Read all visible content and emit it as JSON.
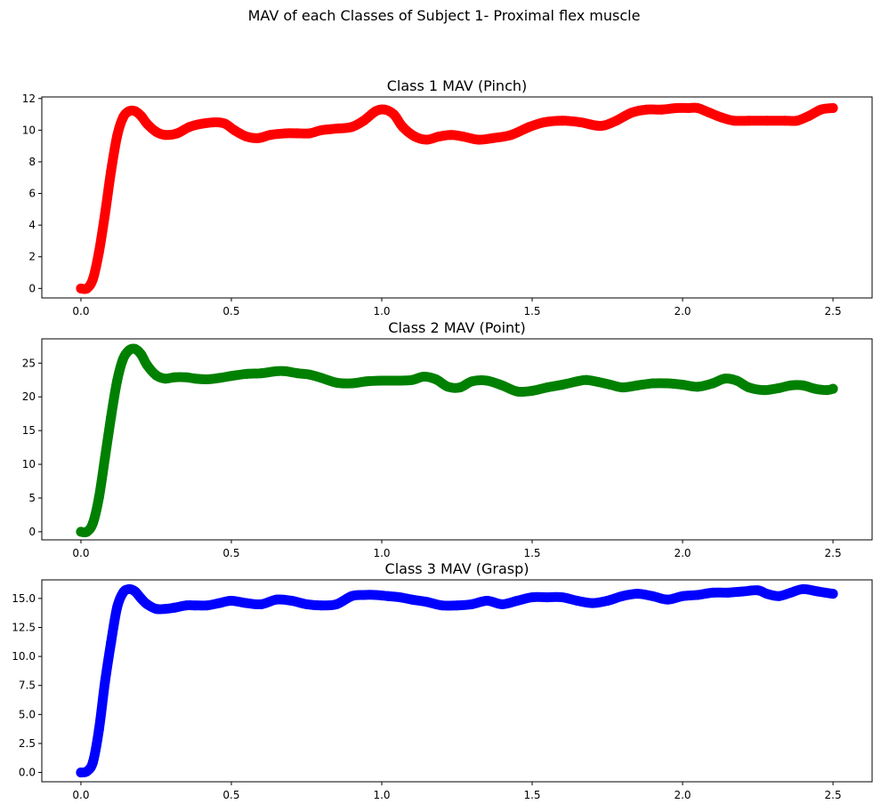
{
  "figure": {
    "suptitle": "MAV of each Classes of Subject 1- Proximal flex muscle"
  },
  "chart_data": [
    {
      "type": "scatter",
      "title": "Class 1 MAV (Pinch)",
      "xlabel": "",
      "ylabel": "",
      "xlim": [
        -0.13,
        2.63
      ],
      "ylim": [
        -0.6,
        12.1
      ],
      "xticks": [
        0.0,
        0.5,
        1.0,
        1.5,
        2.0,
        2.5
      ],
      "xtick_labels": [
        "0.0",
        "0.5",
        "1.0",
        "1.5",
        "2.0",
        "2.5"
      ],
      "yticks": [
        0,
        2,
        4,
        6,
        8,
        10,
        12
      ],
      "ytick_labels": [
        "0",
        "2",
        "4",
        "6",
        "8",
        "10",
        "12"
      ],
      "color": "#ff0000",
      "grid": false,
      "series": [
        {
          "x": [
            0.0,
            0.02,
            0.04,
            0.06,
            0.08,
            0.1,
            0.12,
            0.14,
            0.16,
            0.18,
            0.2,
            0.22,
            0.25,
            0.28,
            0.32,
            0.36,
            0.4,
            0.45,
            0.48,
            0.51,
            0.55,
            0.59,
            0.63,
            0.68,
            0.72,
            0.76,
            0.8,
            0.85,
            0.9,
            0.94,
            0.98,
            1.01,
            1.04,
            1.07,
            1.11,
            1.15,
            1.19,
            1.23,
            1.27,
            1.32,
            1.37,
            1.43,
            1.49,
            1.54,
            1.6,
            1.66,
            1.71,
            1.74,
            1.78,
            1.83,
            1.88,
            1.93,
            1.98,
            2.02,
            2.05,
            2.09,
            2.13,
            2.17,
            2.22,
            2.28,
            2.34,
            2.38,
            2.42,
            2.46,
            2.5
          ],
          "y": [
            0.0,
            0.0,
            0.6,
            2.3,
            4.7,
            7.4,
            9.6,
            10.8,
            11.2,
            11.2,
            10.9,
            10.4,
            9.9,
            9.7,
            9.8,
            10.2,
            10.4,
            10.5,
            10.4,
            10.0,
            9.6,
            9.5,
            9.7,
            9.8,
            9.8,
            9.8,
            10.0,
            10.1,
            10.2,
            10.6,
            11.2,
            11.3,
            11.0,
            10.2,
            9.6,
            9.4,
            9.6,
            9.7,
            9.6,
            9.4,
            9.5,
            9.7,
            10.2,
            10.5,
            10.6,
            10.5,
            10.3,
            10.3,
            10.6,
            11.1,
            11.3,
            11.3,
            11.4,
            11.4,
            11.4,
            11.1,
            10.8,
            10.6,
            10.6,
            10.6,
            10.6,
            10.6,
            10.9,
            11.3,
            11.4
          ]
        }
      ]
    },
    {
      "type": "scatter",
      "title": "Class 2 MAV (Point)",
      "xlabel": "",
      "ylabel": "",
      "xlim": [
        -0.13,
        2.63
      ],
      "ylim": [
        -1.2,
        28.6
      ],
      "xticks": [
        0.0,
        0.5,
        1.0,
        1.5,
        2.0,
        2.5
      ],
      "xtick_labels": [
        "0.0",
        "0.5",
        "1.0",
        "1.5",
        "2.0",
        "2.5"
      ],
      "yticks": [
        0,
        5,
        10,
        15,
        20,
        25
      ],
      "ytick_labels": [
        "0",
        "5",
        "10",
        "15",
        "20",
        "25"
      ],
      "color": "#008000",
      "grid": false,
      "series": [
        {
          "x": [
            0.0,
            0.02,
            0.04,
            0.06,
            0.08,
            0.1,
            0.12,
            0.14,
            0.16,
            0.18,
            0.2,
            0.22,
            0.25,
            0.28,
            0.31,
            0.35,
            0.38,
            0.42,
            0.46,
            0.5,
            0.55,
            0.6,
            0.65,
            0.68,
            0.72,
            0.76,
            0.8,
            0.85,
            0.9,
            0.95,
            1.0,
            1.05,
            1.1,
            1.14,
            1.18,
            1.22,
            1.26,
            1.3,
            1.35,
            1.4,
            1.45,
            1.5,
            1.55,
            1.6,
            1.65,
            1.68,
            1.72,
            1.76,
            1.8,
            1.85,
            1.9,
            1.95,
            2.0,
            2.05,
            2.1,
            2.14,
            2.18,
            2.22,
            2.27,
            2.32,
            2.36,
            2.4,
            2.44,
            2.48,
            2.5
          ],
          "y": [
            0.0,
            0.0,
            1.3,
            5.1,
            11.0,
            17.0,
            22.3,
            25.6,
            26.9,
            27.1,
            26.3,
            24.7,
            23.2,
            22.7,
            22.9,
            22.9,
            22.7,
            22.6,
            22.8,
            23.1,
            23.4,
            23.5,
            23.8,
            23.8,
            23.5,
            23.3,
            22.8,
            22.1,
            22.0,
            22.3,
            22.4,
            22.4,
            22.5,
            23.0,
            22.6,
            21.5,
            21.4,
            22.3,
            22.4,
            21.7,
            20.8,
            20.9,
            21.4,
            21.8,
            22.3,
            22.5,
            22.2,
            21.8,
            21.4,
            21.7,
            22.0,
            22.0,
            21.8,
            21.5,
            22.0,
            22.7,
            22.4,
            21.4,
            21.0,
            21.3,
            21.7,
            21.7,
            21.2,
            21.0,
            21.2
          ]
        }
      ]
    },
    {
      "type": "scatter",
      "title": "Class 3 MAV (Grasp)",
      "xlabel": "",
      "ylabel": "",
      "xlim": [
        -0.13,
        2.63
      ],
      "ylim": [
        -0.8,
        16.6
      ],
      "xticks": [
        0.0,
        0.5,
        1.0,
        1.5,
        2.0,
        2.5
      ],
      "xtick_labels": [
        "0.0",
        "0.5",
        "1.0",
        "1.5",
        "2.0",
        "2.5"
      ],
      "yticks": [
        0.0,
        2.5,
        5.0,
        7.5,
        10.0,
        12.5,
        15.0
      ],
      "ytick_labels": [
        "0.0",
        "2.5",
        "5.0",
        "7.5",
        "10.0",
        "12.5",
        "15.0"
      ],
      "color": "#0000ff",
      "grid": false,
      "series": [
        {
          "x": [
            0.0,
            0.02,
            0.04,
            0.06,
            0.08,
            0.1,
            0.12,
            0.14,
            0.16,
            0.18,
            0.2,
            0.22,
            0.25,
            0.28,
            0.31,
            0.35,
            0.38,
            0.42,
            0.46,
            0.5,
            0.55,
            0.6,
            0.65,
            0.7,
            0.75,
            0.8,
            0.85,
            0.9,
            0.94,
            0.98,
            1.02,
            1.06,
            1.1,
            1.15,
            1.2,
            1.25,
            1.3,
            1.35,
            1.4,
            1.45,
            1.5,
            1.55,
            1.6,
            1.65,
            1.7,
            1.75,
            1.8,
            1.85,
            1.9,
            1.95,
            2.0,
            2.05,
            2.1,
            2.15,
            2.2,
            2.25,
            2.28,
            2.32,
            2.36,
            2.4,
            2.45,
            2.5
          ],
          "y": [
            0.0,
            0.1,
            0.9,
            3.7,
            7.8,
            11.2,
            14.2,
            15.5,
            15.8,
            15.6,
            15.0,
            14.5,
            14.1,
            14.1,
            14.2,
            14.4,
            14.4,
            14.4,
            14.6,
            14.8,
            14.6,
            14.5,
            14.9,
            14.8,
            14.5,
            14.4,
            14.5,
            15.2,
            15.3,
            15.3,
            15.2,
            15.1,
            14.9,
            14.7,
            14.4,
            14.4,
            14.5,
            14.8,
            14.5,
            14.8,
            15.1,
            15.1,
            15.1,
            14.8,
            14.6,
            14.8,
            15.2,
            15.4,
            15.2,
            14.9,
            15.2,
            15.3,
            15.5,
            15.5,
            15.6,
            15.7,
            15.4,
            15.2,
            15.5,
            15.8,
            15.6,
            15.4
          ]
        }
      ]
    }
  ]
}
